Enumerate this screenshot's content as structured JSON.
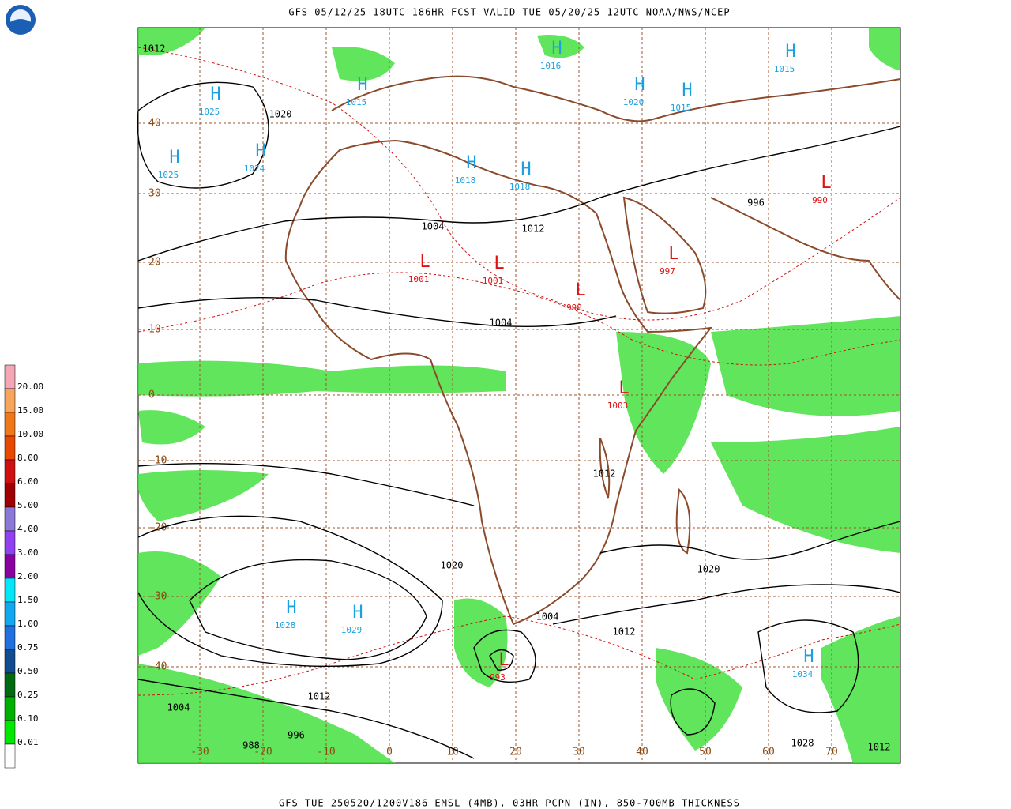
{
  "header": {
    "title": "GFS 05/12/25 18UTC 186HR FCST VALID TUE 05/20/25 12UTC NOAA/NWS/NCEP"
  },
  "footer": {
    "text": "GFS TUE 250520/1200V186 EMSL (4MB), 03HR PCPN (IN), 850-700MB THICKNESS"
  },
  "legend": {
    "items": [
      {
        "label": "20.00",
        "color": "#f4a6b4"
      },
      {
        "label": "15.00",
        "color": "#f7a45c"
      },
      {
        "label": "10.00",
        "color": "#f07818"
      },
      {
        "label": "8.00",
        "color": "#e84800"
      },
      {
        "label": "6.00",
        "color": "#d01010"
      },
      {
        "label": "5.00",
        "color": "#a00000"
      },
      {
        "label": "4.00",
        "color": "#8c78d8"
      },
      {
        "label": "3.00",
        "color": "#9040f0"
      },
      {
        "label": "2.00",
        "color": "#8a00a0"
      },
      {
        "label": "1.50",
        "color": "#00e8f8"
      },
      {
        "label": "1.00",
        "color": "#10a8f0"
      },
      {
        "label": "0.75",
        "color": "#2070e0"
      },
      {
        "label": "0.50",
        "color": "#104c90"
      },
      {
        "label": "0.25",
        "color": "#006a10"
      },
      {
        "label": "0.10",
        "color": "#00b000"
      },
      {
        "label": "0.01",
        "color": "#00e800"
      }
    ]
  },
  "grid": {
    "lat": [
      40,
      30,
      20,
      10,
      0,
      -10,
      -20,
      -30,
      -40
    ],
    "lon": [
      -30,
      -20,
      -10,
      0,
      10,
      20,
      30,
      40,
      50,
      60,
      70
    ]
  },
  "centers": [
    {
      "type": "H",
      "value": "1025"
    },
    {
      "type": "H",
      "value": "1025"
    },
    {
      "type": "H",
      "value": "1024"
    },
    {
      "type": "H",
      "value": "1015"
    },
    {
      "type": "H",
      "value": "1018"
    },
    {
      "type": "H",
      "value": "1018"
    },
    {
      "type": "H",
      "value": "1016"
    },
    {
      "type": "H",
      "value": "1020"
    },
    {
      "type": "H",
      "value": "1015"
    },
    {
      "type": "L",
      "value": "1001"
    },
    {
      "type": "L",
      "value": "1001"
    },
    {
      "type": "L",
      "value": "998"
    },
    {
      "type": "L",
      "value": "997"
    },
    {
      "type": "L",
      "value": "990"
    },
    {
      "type": "L",
      "value": "1003"
    },
    {
      "type": "H",
      "value": "1028"
    },
    {
      "type": "H",
      "value": "1029"
    },
    {
      "type": "H",
      "value": "1034"
    },
    {
      "type": "L",
      "value": "993"
    },
    {
      "type": "H",
      "value": "1015"
    }
  ],
  "isobar_labels": [
    "1012",
    "1020",
    "1004",
    "1012",
    "1004",
    "1012",
    "1020",
    "1012",
    "1004",
    "996",
    "1004",
    "1012",
    "1028",
    "1020",
    "1012",
    "988",
    "996"
  ]
}
